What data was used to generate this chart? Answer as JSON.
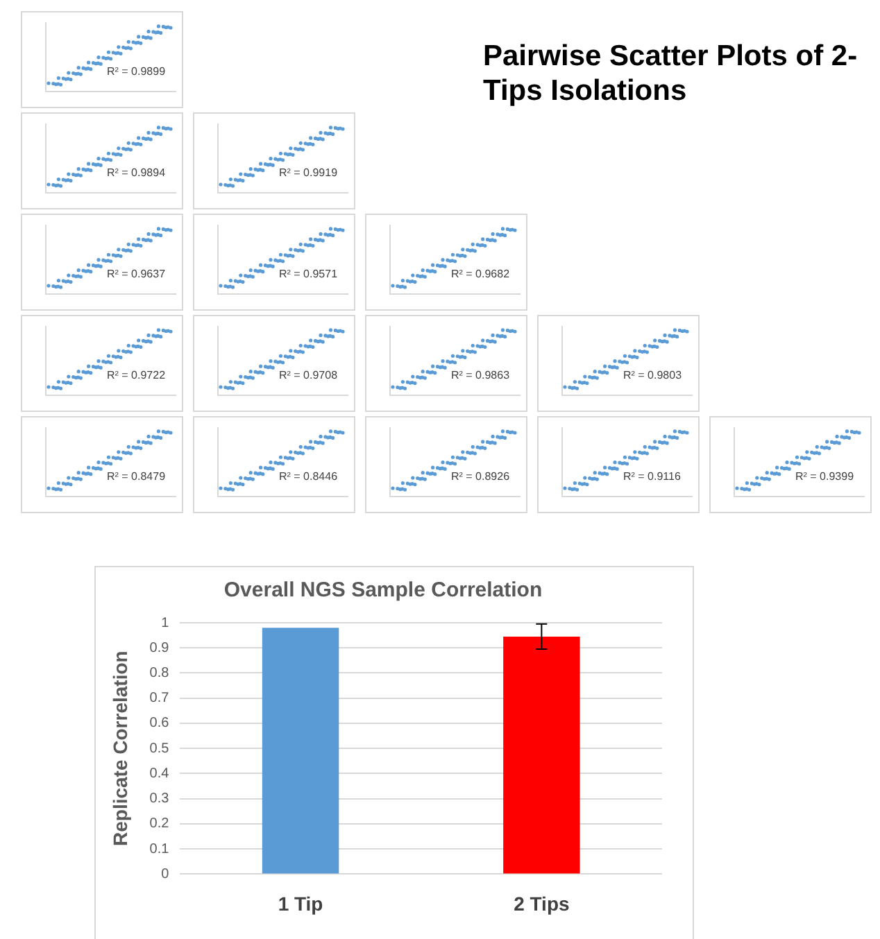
{
  "chart_data": [
    {
      "type": "other",
      "annotations": [
        "R² = 0.9899"
      ]
    },
    {
      "type": "other",
      "title": "Pairwise Scatter Plots of 2-Tips Isolations"
    },
    {
      "type": "other",
      "annotations": [
        "R² = 0.9894"
      ]
    },
    {
      "type": "other",
      "annotations": [
        "R² = 0.9919"
      ]
    },
    {
      "type": "other",
      "annotations": [
        "R² = 0.9637"
      ]
    },
    {
      "type": "other",
      "annotations": [
        "R² = 0.9571"
      ]
    },
    {
      "type": "other",
      "annotations": [
        "R² = 0.9682"
      ]
    },
    {
      "type": "other",
      "annotations": [
        "R² = 0.9722"
      ]
    },
    {
      "type": "other",
      "annotations": [
        "R² = 0.9708"
      ]
    },
    {
      "type": "other",
      "annotations": [
        "R² = 0.9863"
      ]
    },
    {
      "type": "other",
      "annotations": [
        "R² = 0.9803"
      ]
    },
    {
      "type": "other",
      "annotations": [
        "R² = 0.8479"
      ]
    },
    {
      "type": "other",
      "annotations": [
        "R² = 0.8446"
      ]
    },
    {
      "type": "other",
      "annotations": [
        "R² = 0.8926"
      ]
    },
    {
      "type": "other",
      "annotations": [
        "R² = 0.9116"
      ]
    },
    {
      "type": "other",
      "annotations": [
        "R² = 0.9399"
      ]
    },
    {
      "type": "bar",
      "title": "Overall NGS Sample Correlation",
      "ylabel": "Replicate Correlation",
      "categories": [
        "1 Tip",
        "2 Tips"
      ],
      "values": [
        0.98,
        0.945
      ],
      "colors": [
        "#5b9bd5",
        "#ff0000"
      ],
      "errors": [
        null,
        0.05
      ],
      "ylim": [
        0,
        1
      ],
      "yticks": [
        0,
        0.1,
        0.2,
        0.3,
        0.4,
        0.5,
        0.6,
        0.7,
        0.8,
        0.9,
        1
      ],
      "grid": "y"
    }
  ]
}
